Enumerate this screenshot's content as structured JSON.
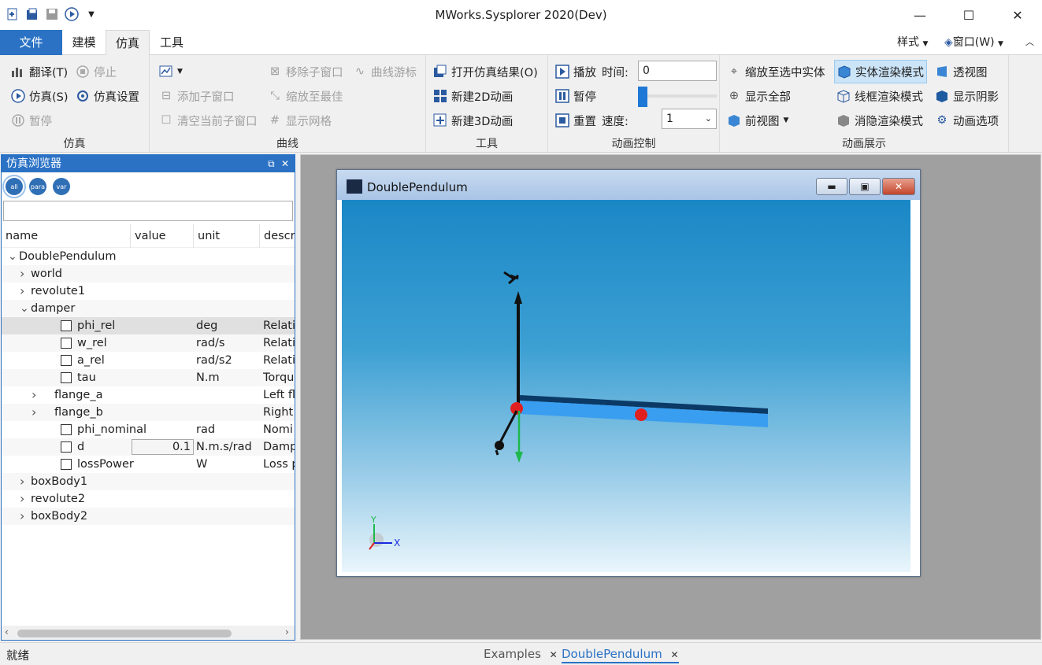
{
  "window": {
    "title": "MWorks.Sysplorer 2020(Dev)"
  },
  "menu": {
    "tabs": [
      "文件",
      "建模",
      "仿真",
      "工具"
    ],
    "active": "仿真",
    "right_style": "样式",
    "right_window": "窗口(W)"
  },
  "ribbon": {
    "sim": {
      "label": "仿真",
      "compile": "翻译(T)",
      "stop": "停止",
      "simulate": "仿真(S)",
      "settings": "仿真设置",
      "pause": "暂停"
    },
    "curve": {
      "label": "曲线",
      "remove_sub": "移除子窗口",
      "cursor": "曲线游标",
      "add_sub": "添加子窗口",
      "zoom_best": "缩放至最佳",
      "clear_sub": "清空当前子窗口",
      "show_grid": "显示网格"
    },
    "tools": {
      "label": "工具",
      "open_result": "打开仿真结果(O)",
      "new2d": "新建2D动画",
      "new3d": "新建3D动画"
    },
    "anim": {
      "label": "动画控制",
      "play": "播放",
      "time_label": "时间:",
      "time_value": "0",
      "pause": "暂停",
      "reset": "重置",
      "speed_label": "速度:",
      "speed_value": "1",
      "slider_fraction": 0
    },
    "show": {
      "label": "动画展示",
      "zoom_selected": "缩放至选中实体",
      "solid": "实体渲染模式",
      "perspective": "透视图",
      "show_all": "显示全部",
      "wireframe": "线框渲染模式",
      "shadow": "显示阴影",
      "front_view": "前视图",
      "hidden_line": "消隐渲染模式",
      "anim_options": "动画选项"
    }
  },
  "browser": {
    "title": "仿真浏览器",
    "filters": [
      "all",
      "para",
      "var"
    ],
    "columns": [
      "name",
      "value",
      "unit",
      "descr"
    ],
    "rows": [
      {
        "indent": 0,
        "tw": "expanded",
        "name": "DoublePendulum"
      },
      {
        "indent": 1,
        "tw": "collapsed",
        "name": "world"
      },
      {
        "indent": 1,
        "tw": "collapsed",
        "name": "revolute1"
      },
      {
        "indent": 1,
        "tw": "expanded",
        "name": "damper"
      },
      {
        "indent": 2,
        "cb": true,
        "name": "phi_rel",
        "unit": "deg",
        "desc": "Relati",
        "sel": true
      },
      {
        "indent": 2,
        "cb": true,
        "name": "w_rel",
        "unit": "rad/s",
        "desc": "Relati"
      },
      {
        "indent": 2,
        "cb": true,
        "name": "a_rel",
        "unit": "rad/s2",
        "desc": "Relati"
      },
      {
        "indent": 2,
        "cb": true,
        "name": "tau",
        "unit": "N.m",
        "desc": "Torqu"
      },
      {
        "indent": 2,
        "tw": "collapsed",
        "name": "flange_a",
        "desc": "Left fl"
      },
      {
        "indent": 2,
        "tw": "collapsed",
        "name": "flange_b",
        "desc": "Right"
      },
      {
        "indent": 2,
        "cb": true,
        "name": "phi_nominal",
        "unit": "rad",
        "desc": "Nomi"
      },
      {
        "indent": 2,
        "cb": true,
        "name": "d",
        "value": "0.1",
        "unit": "N.m.s/rad",
        "desc": "Damp"
      },
      {
        "indent": 2,
        "cb": true,
        "name": "lossPower",
        "unit": "W",
        "desc": "Loss p"
      },
      {
        "indent": 1,
        "tw": "collapsed",
        "name": "boxBody1"
      },
      {
        "indent": 1,
        "tw": "collapsed",
        "name": "revolute2"
      },
      {
        "indent": 1,
        "tw": "collapsed",
        "name": "boxBody2"
      }
    ]
  },
  "animation_window": {
    "title": "DoublePendulum",
    "axis_x": "X",
    "axis_y": "Y"
  },
  "status": {
    "text": "就绪",
    "tabs": [
      "Examples",
      "DoublePendulum"
    ],
    "active_tab": "DoublePendulum"
  },
  "colors": {
    "accent": "#2b72c5",
    "scene_top": "#1a87c6",
    "body": "#3a9ef0",
    "joint": "#e02020"
  }
}
